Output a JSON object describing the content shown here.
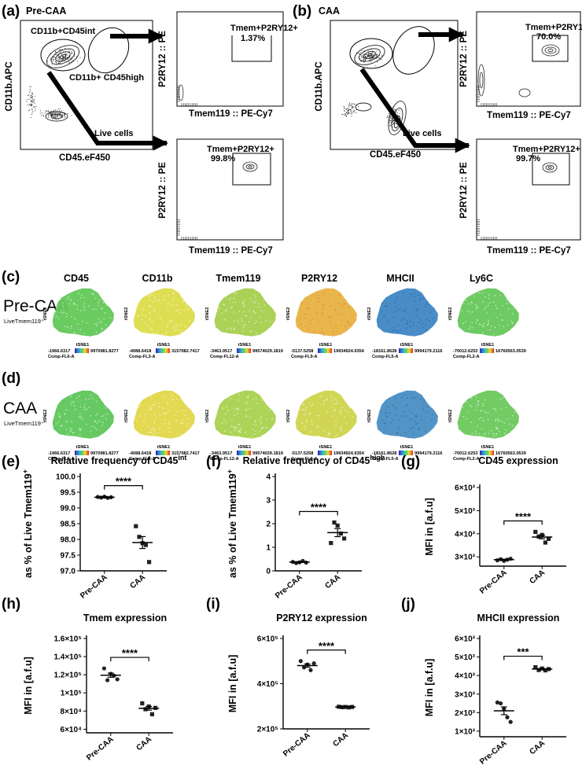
{
  "panel_labels": {
    "a": "(a)",
    "b": "(b)",
    "c": "(c)",
    "d": "(d)",
    "e": "(e)",
    "f": "(f)",
    "g": "(g)",
    "h": "(h)",
    "i": "(i)",
    "j": "(j)"
  },
  "flow": {
    "a_title": "Pre-CAA",
    "b_title": "CAA",
    "main_x_label": "CD45.eF450",
    "main_y_label": "CD11b.APC",
    "gate_int": "CD11b+CD45int",
    "gate_high": "CD11b+ CD45high",
    "live": "Live cells",
    "sub_x_label": "Tmem119 :: PE-Cy7",
    "sub_y_label": "P2RY12 :: PE",
    "gate_name": "Tmem+P2RY12+",
    "a_high_pct": "1.37%",
    "a_int_pct": "99.8%",
    "b_high_pct": "70.0%",
    "b_int_pct": "99.7%"
  },
  "tsne": {
    "markers": [
      "CD45",
      "CD11b",
      "Tmem119",
      "P2RY12",
      "MHCII",
      "Ly6C"
    ],
    "rows": [
      {
        "label": "Pre-CAA",
        "sub": "LiveTmem119⁺"
      },
      {
        "label": "CAA",
        "sub": "LiveTmem119⁺"
      }
    ],
    "x_axis": "tSNE1",
    "y_axis": "tSNE2",
    "ranges": [
      {
        "min": "-1966.6317",
        "max": "9970981.8277",
        "channel": "Comp-FL6-A"
      },
      {
        "min": "-4088.6418",
        "max": "3157082.7417",
        "channel": "Comp-FL3-A"
      },
      {
        "min": "-3463.9517",
        "max": "99574029.1819",
        "channel": "Comp-FL12-A"
      },
      {
        "min": "-5137.5258",
        "max": "19934924.6354",
        "channel": "Comp-FL9-A"
      },
      {
        "min": "-18161.8628",
        "max": "9994179.2116",
        "channel": "Comp-FL5-A"
      },
      {
        "min": "-70012.6253",
        "max": "16760563.0539",
        "channel": "Comp-FL2-A"
      }
    ],
    "colors": {
      "pre": [
        "#62c858",
        "#dcdc4a",
        "#a6cf4e",
        "#e8b242",
        "#3f86c4",
        "#66c75a"
      ],
      "caa": [
        "#5ec65a",
        "#e2d74a",
        "#a9d24f",
        "#cdd44b",
        "#4a8ec4",
        "#6ac85b"
      ]
    }
  },
  "chart_data": [
    {
      "type": "scatter",
      "panel": "(e)",
      "title": "Relative frequency of CD45",
      "title_sup": "int",
      "ylabel": "as % of Live Tmem119",
      "ylabel_sup": "+",
      "categories": [
        "Pre-CAA",
        "CAA"
      ],
      "ylim": [
        97.0,
        100.0
      ],
      "yticks": [
        97.0,
        97.5,
        98.0,
        98.5,
        99.0,
        99.5,
        100.0
      ],
      "ytick_labels": [
        "97.0",
        "97.5",
        "98.0",
        "98.5",
        "99.0",
        "99.5",
        "100.0"
      ],
      "marker": [
        "circle",
        "square"
      ],
      "series": [
        {
          "name": "Pre-CAA",
          "values": [
            99.35,
            99.33,
            99.36,
            99.32,
            99.34
          ],
          "mean": 99.34,
          "sem": 0.02
        },
        {
          "name": "CAA",
          "values": [
            98.42,
            98.08,
            97.88,
            97.82,
            97.28
          ],
          "mean": 97.9,
          "sem": 0.19
        }
      ],
      "significance": "****"
    },
    {
      "type": "scatter",
      "panel": "(f)",
      "title": "Relative frequency of CD45",
      "title_sup": "high",
      "ylabel": "as % of Live Tmem119",
      "ylabel_sup": "+",
      "categories": [
        "Pre-CAA",
        "CAA"
      ],
      "ylim": [
        0,
        4
      ],
      "yticks": [
        0,
        1,
        2,
        3,
        4
      ],
      "ytick_labels": [
        "0",
        "1",
        "2",
        "3",
        "4"
      ],
      "marker": [
        "circle",
        "square"
      ],
      "series": [
        {
          "name": "Pre-CAA",
          "values": [
            0.38,
            0.33,
            0.36,
            0.42,
            0.35
          ],
          "mean": 0.37,
          "sem": 0.02
        },
        {
          "name": "CAA",
          "values": [
            1.18,
            2.05,
            1.92,
            1.58,
            1.37
          ],
          "mean": 1.62,
          "sem": 0.17
        }
      ],
      "significance": "****"
    },
    {
      "type": "scatter",
      "panel": "(g)",
      "title": "CD45 expression",
      "ylabel": "MFI in [a.f.u]",
      "categories": [
        "Pre-CAA",
        "CAA"
      ],
      "ylim": [
        2.6,
        6.0
      ],
      "yticks": [
        3,
        4,
        5,
        6
      ],
      "ytick_labels": [
        "3×10³",
        "4×10³",
        "5×10³",
        "6×10³"
      ],
      "marker": [
        "circle",
        "square"
      ],
      "series": [
        {
          "name": "Pre-CAA",
          "values": [
            2.85,
            2.9,
            2.83,
            2.88,
            2.92
          ],
          "mean": 2.88,
          "sem": 0.02
        },
        {
          "name": "CAA",
          "values": [
            4.08,
            3.88,
            3.95,
            3.62,
            3.78
          ],
          "mean": 3.86,
          "sem": 0.08
        }
      ],
      "significance": "****"
    },
    {
      "type": "scatter",
      "panel": "(h)",
      "title": "Tmem expression",
      "ylabel": "MFI in [a.f.u]",
      "categories": [
        "Pre-CAA",
        "CAA"
      ],
      "ylim": [
        5.6,
        16.0
      ],
      "yticks": [
        6,
        8,
        10,
        12,
        14,
        16
      ],
      "ytick_labels": [
        "6×10⁴",
        "8×10⁴",
        "1×10⁵",
        "1.2×10⁵",
        "1.4×10⁵",
        "1.6×10⁵"
      ],
      "marker": [
        "circle",
        "square"
      ],
      "series": [
        {
          "name": "Pre-CAA",
          "values": [
            12.7,
            11.4,
            12.1,
            11.9,
            11.5
          ],
          "mean": 11.95,
          "sem": 0.23
        },
        {
          "name": "CAA",
          "values": [
            8.85,
            8.2,
            8.5,
            7.65,
            8.35
          ],
          "mean": 8.3,
          "sem": 0.2
        }
      ],
      "significance": "****"
    },
    {
      "type": "scatter",
      "panel": "(i)",
      "title": "P2RY12 expression",
      "ylabel": "MFI in [a.f.u]",
      "categories": [
        "Pre-CAA",
        "CAA"
      ],
      "ylim": [
        2.0,
        6.0
      ],
      "yticks": [
        2,
        4,
        6
      ],
      "ytick_labels": [
        "2×10⁵",
        "4×10⁵",
        "6×10⁵"
      ],
      "marker": [
        "circle",
        "square"
      ],
      "series": [
        {
          "name": "Pre-CAA",
          "values": [
            5.0,
            4.72,
            4.85,
            4.6,
            4.9
          ],
          "mean": 4.8,
          "sem": 0.07
        },
        {
          "name": "CAA",
          "values": [
            2.98,
            2.96,
            2.97,
            2.95,
            2.97
          ],
          "mean": 2.97,
          "sem": 0.01
        }
      ],
      "significance": "****"
    },
    {
      "type": "scatter",
      "panel": "(j)",
      "title": "MHCII expression",
      "ylabel": "MFI in [a.f.u]",
      "categories": [
        "Pre-CAA",
        "CAA"
      ],
      "ylim": [
        0.7,
        6.0
      ],
      "yticks": [
        1,
        2,
        3,
        4,
        5,
        6
      ],
      "ytick_labels": [
        "1×10³",
        "2×10³",
        "3×10³",
        "4×10³",
        "5×10³",
        "6×10³"
      ],
      "marker": [
        "circle",
        "square"
      ],
      "series": [
        {
          "name": "Pre-CAA",
          "values": [
            2.55,
            2.5,
            2.2,
            1.75,
            1.5
          ],
          "mean": 2.1,
          "sem": 0.21
        },
        {
          "name": "CAA",
          "values": [
            4.45,
            4.3,
            4.38,
            4.28,
            4.35
          ],
          "mean": 4.35,
          "sem": 0.03
        }
      ],
      "significance": "***"
    }
  ]
}
